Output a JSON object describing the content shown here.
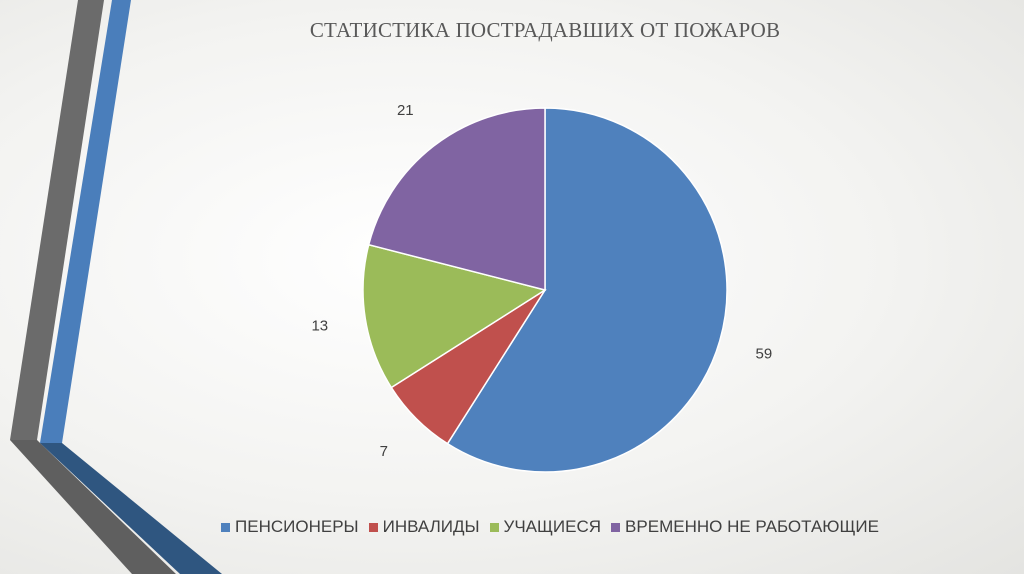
{
  "colors": {
    "pensioners": "#4f81bd",
    "disabled": "#c0504d",
    "students": "#9bbb59",
    "unemployed": "#8064a2",
    "decor_gray": "#6b6b6b",
    "decor_blue": "#4a7ebb",
    "decor_navy": "#2f5680"
  },
  "chart_data": {
    "type": "pie",
    "title": "СТАТИСТИКА ПОСТРАДАВШИХ ОТ ПОЖАРОВ",
    "categories": [
      "ПЕНСИОНЕРЫ",
      "ИНВАЛИДЫ",
      "УЧАЩИЕСЯ",
      "ВРЕМЕННО НЕ РАБОТАЮЩИЕ"
    ],
    "values": [
      59,
      7,
      13,
      21
    ],
    "colors": [
      "#4f81bd",
      "#c0504d",
      "#9bbb59",
      "#8064a2"
    ],
    "data_labels": [
      "59",
      "7",
      "13",
      "21"
    ],
    "legend_position": "bottom",
    "start_angle": "12 o'clock",
    "direction": "clockwise"
  }
}
